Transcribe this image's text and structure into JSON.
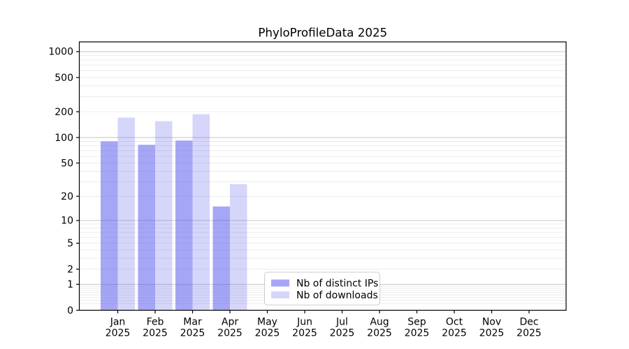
{
  "chart_data": {
    "type": "bar",
    "title": "PhyloProfileData 2025",
    "y_scale": "log10(value + 1)",
    "ylim": [
      0,
      1250
    ],
    "y_ticks": [
      0,
      1,
      2,
      5,
      10,
      20,
      50,
      100,
      200,
      500,
      1000
    ],
    "xlabel": "",
    "ylabel": "",
    "grid": {
      "on": true,
      "major_lines_at": [
        1,
        10,
        100,
        1000
      ],
      "minor_decades": [
        0.1,
        1,
        10,
        100
      ],
      "major_color": "#c6c6c6",
      "minor_color": "#ececec"
    },
    "categories": [
      [
        "Jan",
        "2025"
      ],
      [
        "Feb",
        "2025"
      ],
      [
        "Mar",
        "2025"
      ],
      [
        "Apr",
        "2025"
      ],
      [
        "May",
        "2025"
      ],
      [
        "Jun",
        "2025"
      ],
      [
        "Jul",
        "2025"
      ],
      [
        "Aug",
        "2025"
      ],
      [
        "Sep",
        "2025"
      ],
      [
        "Oct",
        "2025"
      ],
      [
        "Nov",
        "2025"
      ],
      [
        "Dec",
        "2025"
      ]
    ],
    "series": [
      {
        "name": "Nb of distinct IPs",
        "slug": "nb-of-distinct-ips",
        "base_color": "#5555ee",
        "opacity": 0.52,
        "rendered_color": "#a8a8f5",
        "values": [
          90,
          82,
          92,
          15,
          0,
          0,
          0,
          0,
          0,
          0,
          0,
          0
        ]
      },
      {
        "name": "Nb of downloads",
        "slug": "nb-of-downloads",
        "base_color": "#5555ee",
        "opacity": 0.24,
        "rendered_color": "#d7d7f9",
        "values": [
          171,
          155,
          187,
          28,
          0,
          0,
          0,
          0,
          0,
          0,
          0,
          0
        ]
      }
    ],
    "legend": {
      "position": "inside-bottom-center",
      "border_color": "#cccccc",
      "background_color": "#ffffff",
      "entries": [
        "Nb of distinct IPs",
        "Nb of downloads"
      ]
    },
    "axis_color": "#000000",
    "background_color": "#ffffff"
  }
}
